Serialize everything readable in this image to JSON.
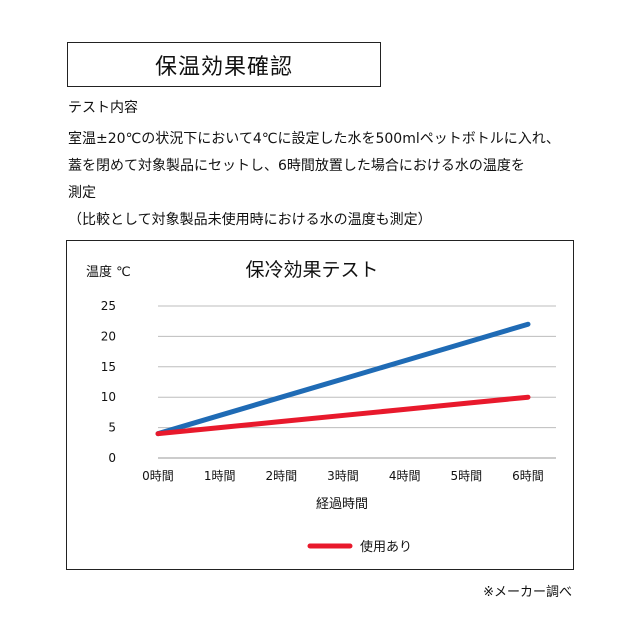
{
  "header": {
    "title": "保温効果確認"
  },
  "description": {
    "heading": "テスト内容",
    "lines": [
      "室温±20℃の状況下において4℃に設定した水を500mlペットボトルに入れ、",
      "蓋を閉めて対象製品にセットし、6時間放置した場合における水の温度を",
      "測定",
      "（比較として対象製品未使用時における水の温度も測定）"
    ]
  },
  "chart_data": {
    "type": "line",
    "title": "保冷効果テスト",
    "ylabel": "温度 ℃",
    "xlabel": "経過時間",
    "categories": [
      "0時間",
      "1時間",
      "2時間",
      "3時間",
      "4時間",
      "5時間",
      "6時間"
    ],
    "yticks": [
      0,
      5,
      10,
      15,
      20,
      25
    ],
    "ylim": [
      0,
      25
    ],
    "grid": true,
    "legend_position": "bottom-center",
    "series": [
      {
        "name": "",
        "color": "#1f6bb5",
        "values": [
          4,
          7,
          10,
          13,
          16,
          19,
          22
        ]
      },
      {
        "name": "使用あり",
        "color": "#e8192c",
        "values": [
          4,
          5,
          6,
          7,
          8,
          9,
          10
        ]
      }
    ]
  },
  "footnote": "※メーカー調べ"
}
